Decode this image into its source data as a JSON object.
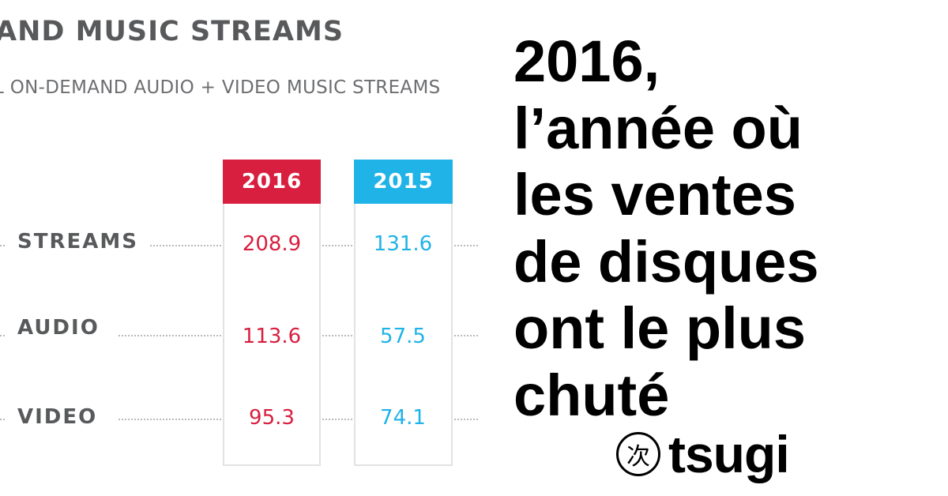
{
  "chart": {
    "title": "AND MUSIC STREAMS",
    "subtitle": "L ON-DEMAND AUDIO + VIDEO MUSIC STREAMS",
    "columns": [
      {
        "label": "2016",
        "color": "#d81f3f"
      },
      {
        "label": "2015",
        "color": "#1fb3e8"
      }
    ],
    "rows": [
      {
        "label": "STREAMS",
        "v2016": "208.9",
        "v2015": "131.6"
      },
      {
        "label": "AUDIO",
        "v2016": "113.6",
        "v2015": "57.5"
      },
      {
        "label": "VIDEO",
        "v2016": "95.3",
        "v2015": "74.1"
      }
    ]
  },
  "chart_data": {
    "type": "table",
    "title": "AND MUSIC STREAMS",
    "subtitle": "L ON-DEMAND AUDIO + VIDEO MUSIC STREAMS",
    "columns": [
      "2016",
      "2015"
    ],
    "rows": [
      "STREAMS",
      "AUDIO",
      "VIDEO"
    ],
    "values": [
      [
        208.9,
        131.6
      ],
      [
        113.6,
        57.5
      ],
      [
        95.3,
        74.1
      ]
    ]
  },
  "headline": {
    "lines": [
      "2016,",
      "l’année où",
      "les ventes",
      "de disques",
      "ont le plus",
      "chuté"
    ]
  },
  "brand": {
    "mark": "次",
    "name": "tsugi"
  }
}
